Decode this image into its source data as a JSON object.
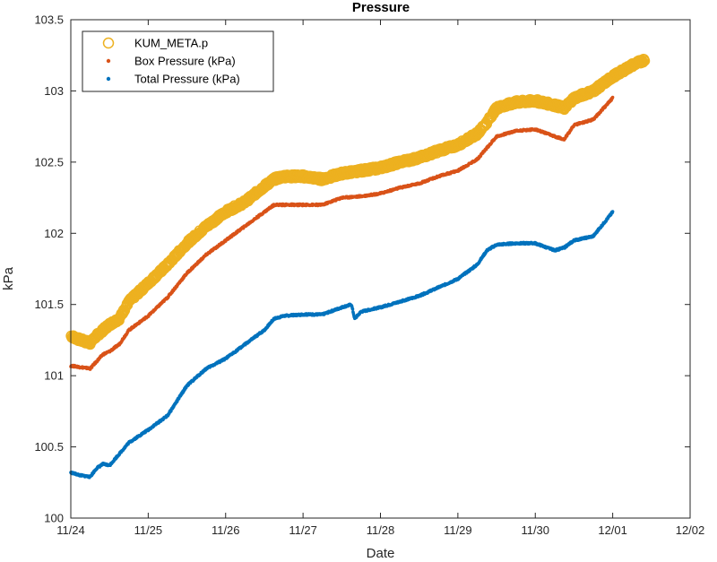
{
  "chart_data": {
    "type": "scatter",
    "title": "Pressure",
    "xlabel": "Date",
    "ylabel": "kPa",
    "x_ticks": [
      "11/24",
      "11/25",
      "11/26",
      "11/27",
      "11/28",
      "11/29",
      "11/30",
      "12/01",
      "12/02"
    ],
    "xlim": [
      "11/24",
      "12/02"
    ],
    "ylim": [
      100,
      103.5
    ],
    "y_ticks": [
      100,
      100.5,
      101,
      101.5,
      102,
      102.5,
      103,
      103.5
    ],
    "legend_position": "top-left",
    "grid": false,
    "series": [
      {
        "name": "KUM_META.p",
        "color": "#EDB120",
        "marker": "circle",
        "x": [
          "11/24 00:00",
          "11/24 03:00",
          "11/24 06:00",
          "11/24 08:00",
          "11/24 10:00",
          "11/24 12:00",
          "11/24 15:00",
          "11/24 18:00",
          "11/25 00:00",
          "11/25 06:00",
          "11/25 12:00",
          "11/25 18:00",
          "11/26 00:00",
          "11/26 06:00",
          "11/26 12:00",
          "11/26 15:00",
          "11/26 18:00",
          "11/27 00:00",
          "11/27 06:00",
          "11/27 12:00",
          "11/27 18:00",
          "11/28 00:00",
          "11/28 06:00",
          "11/28 12:00",
          "11/28 18:00",
          "11/29 00:00",
          "11/29 06:00",
          "11/29 09:00",
          "11/29 12:00",
          "11/29 18:00",
          "11/30 00:00",
          "11/30 06:00",
          "11/30 09:00",
          "11/30 12:00",
          "11/30 18:00",
          "12/01 00:00",
          "12/01 06:00",
          "12/01 10:00"
        ],
        "y": [
          101.28,
          101.25,
          101.23,
          101.28,
          101.32,
          101.36,
          101.4,
          101.52,
          101.65,
          101.78,
          101.93,
          102.05,
          102.15,
          102.22,
          102.33,
          102.38,
          102.4,
          102.4,
          102.38,
          102.42,
          102.44,
          102.46,
          102.5,
          102.53,
          102.58,
          102.62,
          102.7,
          102.78,
          102.88,
          102.92,
          102.93,
          102.9,
          102.88,
          102.95,
          103.0,
          103.1,
          103.18,
          103.22
        ]
      },
      {
        "name": "Box Pressure (kPa)",
        "color": "#D95319",
        "marker": "dot",
        "x": [
          "11/24 00:00",
          "11/24 03:00",
          "11/24 06:00",
          "11/24 08:00",
          "11/24 10:00",
          "11/24 12:00",
          "11/24 15:00",
          "11/24 18:00",
          "11/25 00:00",
          "11/25 06:00",
          "11/25 12:00",
          "11/25 18:00",
          "11/26 00:00",
          "11/26 06:00",
          "11/26 12:00",
          "11/26 15:00",
          "11/26 18:00",
          "11/27 00:00",
          "11/27 06:00",
          "11/27 12:00",
          "11/27 18:00",
          "11/28 00:00",
          "11/28 06:00",
          "11/28 12:00",
          "11/28 18:00",
          "11/29 00:00",
          "11/29 06:00",
          "11/29 09:00",
          "11/29 12:00",
          "11/29 18:00",
          "11/30 00:00",
          "11/30 06:00",
          "11/30 09:00",
          "11/30 12:00",
          "11/30 18:00",
          "12/01 00:00"
        ],
        "y": [
          101.07,
          101.06,
          101.05,
          101.1,
          101.15,
          101.17,
          101.22,
          101.32,
          101.42,
          101.55,
          101.72,
          101.85,
          101.95,
          102.05,
          102.15,
          102.2,
          102.2,
          102.2,
          102.2,
          102.25,
          102.26,
          102.28,
          102.32,
          102.35,
          102.4,
          102.44,
          102.52,
          102.6,
          102.68,
          102.72,
          102.73,
          102.68,
          102.66,
          102.76,
          102.8,
          102.95
        ]
      },
      {
        "name": "Total Pressure (kPa)",
        "color": "#0072BD",
        "marker": "dot",
        "x": [
          "11/24 00:00",
          "11/24 03:00",
          "11/24 06:00",
          "11/24 08:00",
          "11/24 10:00",
          "11/24 12:00",
          "11/24 15:00",
          "11/24 18:00",
          "11/25 00:00",
          "11/25 06:00",
          "11/25 12:00",
          "11/25 18:00",
          "11/26 00:00",
          "11/26 06:00",
          "11/26 12:00",
          "11/26 15:00",
          "11/26 18:00",
          "11/27 00:00",
          "11/27 06:00",
          "11/27 12:00",
          "11/27 15:00",
          "11/27 16:00",
          "11/27 18:00",
          "11/28 00:00",
          "11/28 06:00",
          "11/28 12:00",
          "11/28 18:00",
          "11/29 00:00",
          "11/29 06:00",
          "11/29 09:00",
          "11/29 12:00",
          "11/29 18:00",
          "11/30 00:00",
          "11/30 06:00",
          "11/30 09:00",
          "11/30 12:00",
          "11/30 18:00",
          "12/01 00:00"
        ],
        "y": [
          100.32,
          100.3,
          100.29,
          100.35,
          100.38,
          100.37,
          100.45,
          100.53,
          100.62,
          100.72,
          100.93,
          101.05,
          101.12,
          101.22,
          101.32,
          101.4,
          101.42,
          101.43,
          101.43,
          101.48,
          101.5,
          101.4,
          101.45,
          101.48,
          101.52,
          101.56,
          101.62,
          101.68,
          101.78,
          101.88,
          101.92,
          101.93,
          101.93,
          101.88,
          101.9,
          101.95,
          101.98,
          102.15
        ]
      }
    ]
  }
}
